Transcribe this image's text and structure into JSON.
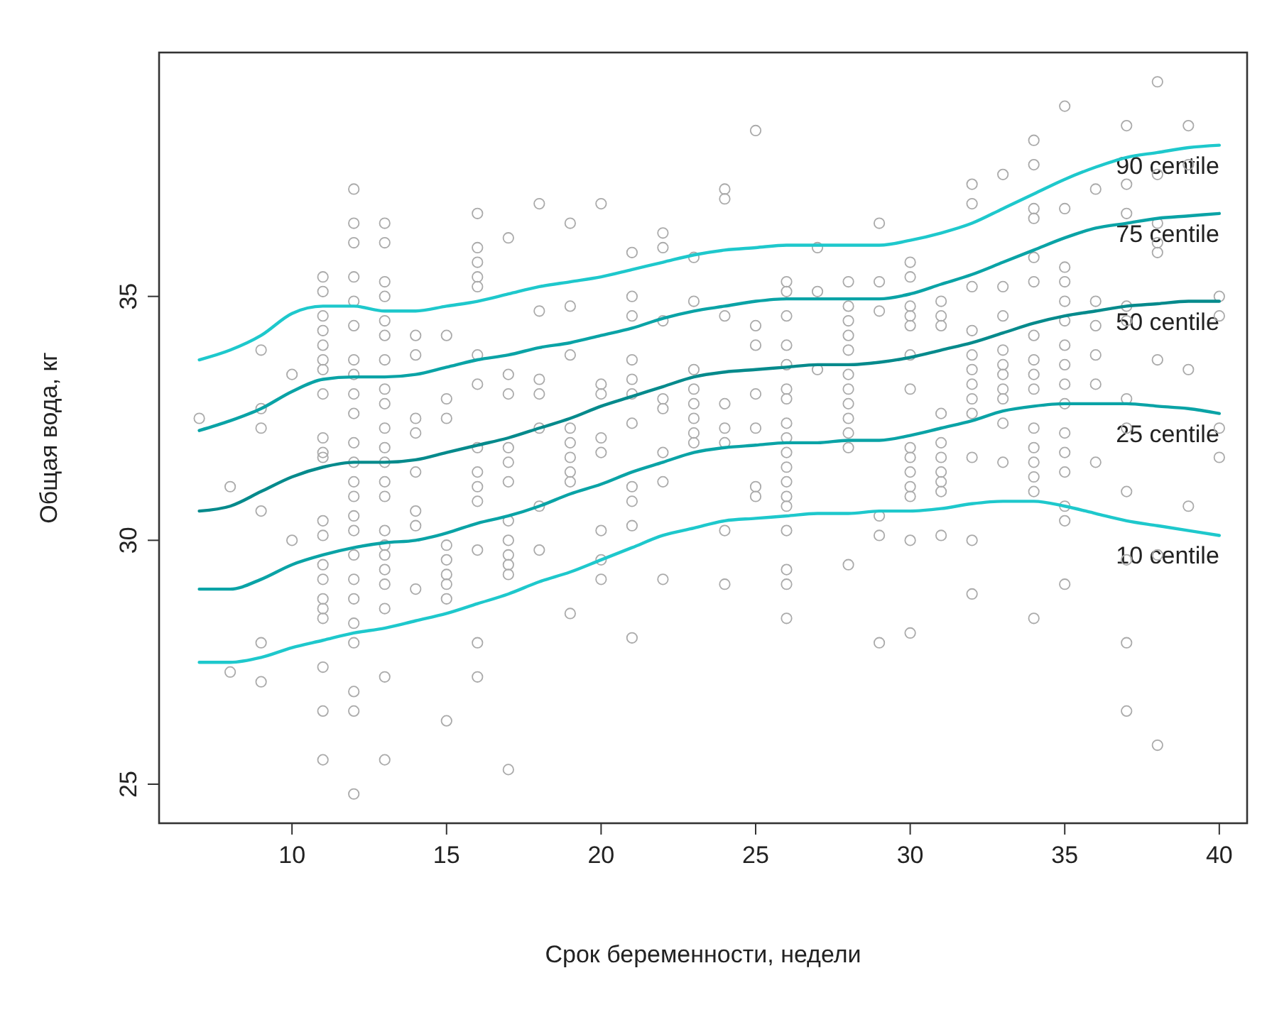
{
  "chart_data": {
    "type": "scatter",
    "xlabel": "Срок беременности, недели",
    "ylabel": "Общая вода, кг",
    "xlim": [
      5.7,
      40.9
    ],
    "ylim": [
      24.2,
      40.0
    ],
    "xticks": [
      10,
      15,
      20,
      25,
      30,
      35,
      40
    ],
    "yticks": [
      25,
      30,
      35
    ],
    "grid": false,
    "legend": false,
    "marker": "circle",
    "series": [
      {
        "type": "scatter",
        "color": "#aaaaaa",
        "x": [
          7,
          8,
          8,
          9,
          9,
          9,
          9,
          9,
          9,
          10,
          10,
          11,
          11,
          11,
          11,
          11,
          11,
          11,
          11,
          11,
          11,
          11,
          11,
          11,
          11,
          11,
          11,
          11,
          11,
          11,
          11,
          11,
          12,
          12,
          12,
          12,
          12,
          12,
          12,
          12,
          12,
          12,
          12,
          12,
          12,
          12,
          12,
          12,
          12,
          12,
          12,
          12,
          12,
          12,
          12,
          12,
          13,
          13,
          13,
          13,
          13,
          13,
          13,
          13,
          13,
          13,
          13,
          13,
          13,
          13,
          13,
          13,
          13,
          13,
          13,
          13,
          13,
          13,
          14,
          14,
          14,
          14,
          14,
          14,
          14,
          14,
          15,
          15,
          15,
          15,
          15,
          15,
          15,
          15,
          15,
          16,
          16,
          16,
          16,
          16,
          16,
          16,
          16,
          16,
          16,
          16,
          16,
          16,
          16,
          17,
          17,
          17,
          17,
          17,
          17,
          17,
          17,
          17,
          17,
          17,
          17,
          18,
          18,
          18,
          18,
          18,
          18,
          18,
          19,
          19,
          19,
          19,
          19,
          19,
          19,
          19,
          19,
          20,
          20,
          20,
          20,
          20,
          20,
          20,
          20,
          21,
          21,
          21,
          21,
          21,
          21,
          21,
          21,
          21,
          21,
          21,
          22,
          22,
          22,
          22,
          22,
          22,
          22,
          22,
          23,
          23,
          23,
          23,
          23,
          23,
          23,
          23,
          24,
          24,
          24,
          24,
          24,
          24,
          24,
          24,
          25,
          25,
          25,
          25,
          25,
          25,
          25,
          26,
          26,
          26,
          26,
          26,
          26,
          26,
          26,
          26,
          26,
          26,
          26,
          26,
          26,
          26,
          26,
          26,
          26,
          27,
          27,
          27,
          28,
          28,
          28,
          28,
          28,
          28,
          28,
          28,
          28,
          28,
          28,
          28,
          29,
          29,
          29,
          29,
          29,
          29,
          30,
          30,
          30,
          30,
          30,
          30,
          30,
          30,
          30,
          30,
          30,
          30,
          30,
          30,
          31,
          31,
          31,
          31,
          31,
          31,
          31,
          31,
          31,
          31,
          32,
          32,
          32,
          32,
          32,
          32,
          32,
          32,
          32,
          32,
          32,
          32,
          33,
          33,
          33,
          33,
          33,
          33,
          33,
          33,
          33,
          33,
          34,
          34,
          34,
          34,
          34,
          34,
          34,
          34,
          34,
          34,
          34,
          34,
          34,
          34,
          34,
          34,
          35,
          35,
          35,
          35,
          35,
          35,
          35,
          35,
          35,
          35,
          35,
          35,
          35,
          35,
          35,
          35,
          36,
          36,
          36,
          36,
          36,
          36,
          37,
          37,
          37,
          37,
          37,
          37,
          37,
          37,
          37,
          37,
          37,
          38,
          38,
          38,
          38,
          38,
          38,
          38,
          38,
          39,
          39,
          39,
          39,
          40,
          40,
          40,
          40
        ],
        "values": [
          32.5,
          31.1,
          27.3,
          33.9,
          32.7,
          32.3,
          30.6,
          27.9,
          27.1,
          33.4,
          30.0,
          35.4,
          35.1,
          34.6,
          34.3,
          34.0,
          33.7,
          33.5,
          33.0,
          32.1,
          31.8,
          31.7,
          30.4,
          30.1,
          29.5,
          29.2,
          28.8,
          28.6,
          28.4,
          27.4,
          26.5,
          25.5,
          37.2,
          36.5,
          36.1,
          35.4,
          34.9,
          34.4,
          33.7,
          33.4,
          33.0,
          32.6,
          32.0,
          31.6,
          31.2,
          30.9,
          30.5,
          30.2,
          29.7,
          29.2,
          28.8,
          28.3,
          27.9,
          26.9,
          26.5,
          24.8,
          36.5,
          36.1,
          35.3,
          35.0,
          34.5,
          34.2,
          33.7,
          33.1,
          32.8,
          32.3,
          31.9,
          31.6,
          31.2,
          30.9,
          30.2,
          29.9,
          29.7,
          29.4,
          29.1,
          28.6,
          27.2,
          25.5,
          34.2,
          33.8,
          32.5,
          32.2,
          31.4,
          30.6,
          30.3,
          29.0,
          34.2,
          32.9,
          32.5,
          29.9,
          29.6,
          29.3,
          29.1,
          28.8,
          26.3,
          36.7,
          36.0,
          35.7,
          35.4,
          35.2,
          33.8,
          33.2,
          31.9,
          31.4,
          31.1,
          30.8,
          29.8,
          27.9,
          27.2,
          36.2,
          33.4,
          33.0,
          31.9,
          31.6,
          31.2,
          30.4,
          30.0,
          29.7,
          29.5,
          29.3,
          25.3,
          36.9,
          34.7,
          33.3,
          33.0,
          32.3,
          30.7,
          29.8,
          36.5,
          34.8,
          33.8,
          32.3,
          32.0,
          31.7,
          31.4,
          31.2,
          28.5,
          36.9,
          33.2,
          33.0,
          32.1,
          31.8,
          30.2,
          29.6,
          29.2,
          35.9,
          35.0,
          34.6,
          33.7,
          33.3,
          33.0,
          32.4,
          31.1,
          30.8,
          30.3,
          28.0,
          36.3,
          36.0,
          34.5,
          32.9,
          32.7,
          31.8,
          31.2,
          29.2,
          35.8,
          34.9,
          33.5,
          33.1,
          32.8,
          32.5,
          32.2,
          32.0,
          37.2,
          37.0,
          34.6,
          32.8,
          32.3,
          32.0,
          30.2,
          29.1,
          38.4,
          34.4,
          34.0,
          33.0,
          32.3,
          31.1,
          30.9,
          35.3,
          35.1,
          34.6,
          34.0,
          33.6,
          33.1,
          32.9,
          32.4,
          32.1,
          31.8,
          31.5,
          31.2,
          30.9,
          30.7,
          30.2,
          29.4,
          29.1,
          28.4,
          36.0,
          35.1,
          33.5,
          35.3,
          34.8,
          34.5,
          34.2,
          33.9,
          33.4,
          33.1,
          32.8,
          32.5,
          32.2,
          31.9,
          29.5,
          36.5,
          35.3,
          34.7,
          30.5,
          30.1,
          27.9,
          35.7,
          35.4,
          34.8,
          34.6,
          34.4,
          33.8,
          33.1,
          31.9,
          31.7,
          31.4,
          31.1,
          30.9,
          30.0,
          28.1,
          34.9,
          34.6,
          34.4,
          32.6,
          32.0,
          31.7,
          31.4,
          31.2,
          31.0,
          30.1,
          37.3,
          36.9,
          35.2,
          34.3,
          33.8,
          33.5,
          33.2,
          32.9,
          32.6,
          31.7,
          30.0,
          28.9,
          37.5,
          35.2,
          34.6,
          33.9,
          33.6,
          33.4,
          33.1,
          32.9,
          32.4,
          31.6,
          38.2,
          37.7,
          36.8,
          36.6,
          35.8,
          35.3,
          34.2,
          33.7,
          33.4,
          33.1,
          32.3,
          31.9,
          31.6,
          31.3,
          31.0,
          28.4,
          38.9,
          36.8,
          35.6,
          35.3,
          34.9,
          34.5,
          34.0,
          33.6,
          33.2,
          32.8,
          32.2,
          31.8,
          31.4,
          30.7,
          30.4,
          29.1,
          37.2,
          34.9,
          34.4,
          33.8,
          33.2,
          31.6,
          38.5,
          37.3,
          36.7,
          34.8,
          34.5,
          32.9,
          32.3,
          31.0,
          29.6,
          27.9,
          26.5,
          39.4,
          37.5,
          36.5,
          36.1,
          35.9,
          33.7,
          29.7,
          25.8,
          38.5,
          37.7,
          33.5,
          30.7,
          35.0,
          34.6,
          32.3,
          31.7
        ]
      },
      {
        "type": "line",
        "name": "90 centile",
        "color": "#1ec8cc",
        "marker": "none",
        "x": [
          7,
          8,
          9,
          10,
          11,
          12,
          13,
          14,
          15,
          16,
          17,
          18,
          19,
          20,
          21,
          22,
          23,
          24,
          25,
          26,
          27,
          28,
          29,
          30,
          31,
          32,
          33,
          34,
          35,
          36,
          37,
          38,
          39,
          40
        ],
        "values": [
          33.7,
          33.9,
          34.2,
          34.65,
          34.8,
          34.8,
          34.7,
          34.7,
          34.8,
          34.9,
          35.05,
          35.2,
          35.3,
          35.4,
          35.55,
          35.7,
          35.85,
          35.95,
          36.0,
          36.05,
          36.05,
          36.05,
          36.05,
          36.15,
          36.3,
          36.5,
          36.8,
          37.1,
          37.4,
          37.65,
          37.85,
          37.95,
          38.05,
          38.1
        ]
      },
      {
        "type": "line",
        "name": "75 centile",
        "color": "#0aa3a6",
        "marker": "none",
        "x": [
          7,
          8,
          9,
          10,
          11,
          12,
          13,
          14,
          15,
          16,
          17,
          18,
          19,
          20,
          21,
          22,
          23,
          24,
          25,
          26,
          27,
          28,
          29,
          30,
          31,
          32,
          33,
          34,
          35,
          36,
          37,
          38,
          39,
          40
        ],
        "values": [
          32.25,
          32.45,
          32.7,
          33.05,
          33.3,
          33.35,
          33.35,
          33.4,
          33.55,
          33.7,
          33.8,
          33.95,
          34.05,
          34.2,
          34.35,
          34.55,
          34.7,
          34.8,
          34.9,
          34.95,
          34.95,
          34.95,
          34.95,
          35.05,
          35.25,
          35.45,
          35.7,
          35.95,
          36.2,
          36.4,
          36.5,
          36.6,
          36.65,
          36.7
        ]
      },
      {
        "type": "line",
        "name": "50 centile",
        "color": "#068a8c",
        "marker": "none",
        "x": [
          7,
          8,
          9,
          10,
          11,
          12,
          13,
          14,
          15,
          16,
          17,
          18,
          19,
          20,
          21,
          22,
          23,
          24,
          25,
          26,
          27,
          28,
          29,
          30,
          31,
          32,
          33,
          34,
          35,
          36,
          37,
          38,
          39,
          40
        ],
        "values": [
          30.6,
          30.7,
          31.0,
          31.3,
          31.5,
          31.6,
          31.6,
          31.65,
          31.8,
          31.95,
          32.1,
          32.3,
          32.5,
          32.75,
          32.95,
          33.15,
          33.35,
          33.45,
          33.5,
          33.55,
          33.6,
          33.6,
          33.65,
          33.75,
          33.9,
          34.05,
          34.25,
          34.45,
          34.6,
          34.7,
          34.8,
          34.85,
          34.9,
          34.9
        ]
      },
      {
        "type": "line",
        "name": "25 centile",
        "color": "#0aa3a6",
        "marker": "none",
        "x": [
          7,
          8,
          9,
          10,
          11,
          12,
          13,
          14,
          15,
          16,
          17,
          18,
          19,
          20,
          21,
          22,
          23,
          24,
          25,
          26,
          27,
          28,
          29,
          30,
          31,
          32,
          33,
          34,
          35,
          36,
          37,
          38,
          39,
          40
        ],
        "values": [
          29.0,
          29.0,
          29.2,
          29.5,
          29.7,
          29.85,
          29.95,
          30.0,
          30.15,
          30.35,
          30.5,
          30.7,
          30.95,
          31.15,
          31.4,
          31.6,
          31.8,
          31.9,
          31.95,
          32.0,
          32.0,
          32.05,
          32.05,
          32.15,
          32.3,
          32.45,
          32.65,
          32.75,
          32.8,
          32.8,
          32.8,
          32.75,
          32.7,
          32.6
        ]
      },
      {
        "type": "line",
        "name": "10 centile",
        "color": "#1ec8cc",
        "marker": "none",
        "x": [
          7,
          8,
          9,
          10,
          11,
          12,
          13,
          14,
          15,
          16,
          17,
          18,
          19,
          20,
          21,
          22,
          23,
          24,
          25,
          26,
          27,
          28,
          29,
          30,
          31,
          32,
          33,
          34,
          35,
          36,
          37,
          38,
          39,
          40
        ],
        "values": [
          27.5,
          27.5,
          27.6,
          27.8,
          27.95,
          28.1,
          28.2,
          28.35,
          28.5,
          28.7,
          28.9,
          29.15,
          29.35,
          29.6,
          29.85,
          30.1,
          30.25,
          30.4,
          30.45,
          30.5,
          30.55,
          30.55,
          30.6,
          30.6,
          30.65,
          30.75,
          30.8,
          30.8,
          30.7,
          30.55,
          30.4,
          30.3,
          30.2,
          30.1
        ]
      }
    ]
  }
}
